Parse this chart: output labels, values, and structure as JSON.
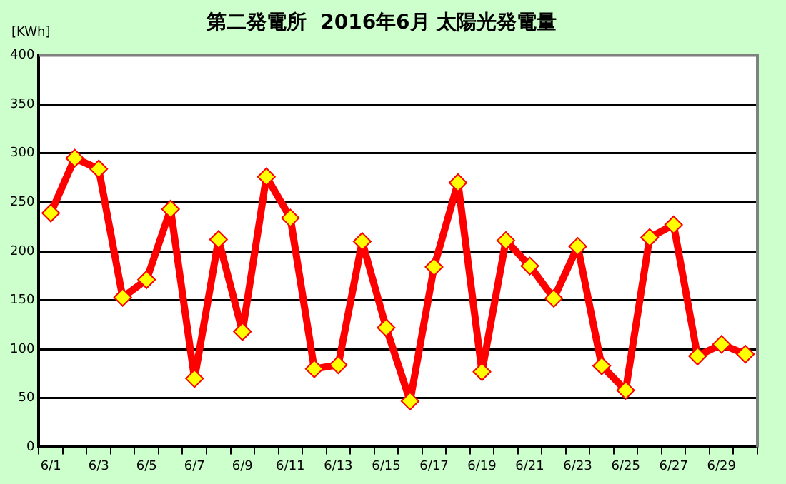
{
  "chart_data": {
    "type": "line",
    "title": "第二発電所  2016年6月 太陽光発電量",
    "ylabel": "[KWh]",
    "categories": [
      "6/1",
      null,
      "6/3",
      null,
      "6/5",
      null,
      "6/7",
      null,
      "6/9",
      null,
      "6/11",
      null,
      "6/13",
      null,
      "6/15",
      null,
      "6/17",
      null,
      "6/19",
      null,
      "6/21",
      null,
      "6/23",
      null,
      "6/25",
      null,
      "6/27",
      null,
      "6/29",
      null
    ],
    "series": [
      {
        "color": "#ff0000",
        "values": [
          239,
          295,
          284,
          153,
          171,
          243,
          70,
          212,
          118,
          276,
          234,
          80,
          84,
          210,
          122,
          47,
          184,
          270,
          77,
          211,
          185,
          152,
          205,
          83,
          58,
          214,
          227,
          93,
          105,
          95
        ]
      }
    ],
    "ylim": [
      0,
      400
    ],
    "yticks": [
      0,
      50,
      100,
      150,
      200,
      250,
      300,
      350,
      400
    ],
    "grid": "y",
    "legend": false,
    "marker": "diamond",
    "line_style": "solid"
  }
}
